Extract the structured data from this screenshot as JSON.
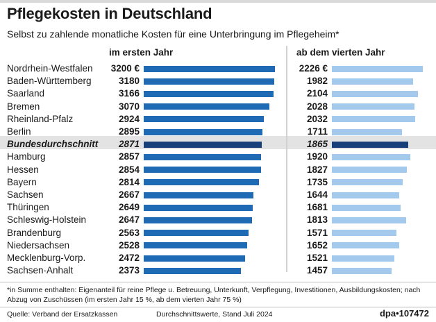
{
  "title": "Pflegekosten in Deutschland",
  "subtitle": "Selbst zu zahlende monatliche Kosten für eine Unterbringung im Pflegeheim*",
  "footnote": "*in Summe enthalten: Eigenanteil für reine Pflege u. Betreuung, Unterkunft, Verpflegung, Investitionen, Ausbildungskosten; nach Abzug von Zuschüssen (im ersten Jahr 15 %, ab dem vierten Jahr 75 %)",
  "source": "Quelle: Verband der Ersatzkassen",
  "date_note": "Durchschnittswerte, Stand Juli 2024",
  "credit": "dpa•107472",
  "colors": {
    "first_year": "#1f6ab4",
    "fourth_year": "#a3c9ec",
    "national_first": "#173f7a",
    "national_fourth": "#173f7a"
  },
  "chart_data": {
    "type": "bar",
    "orientation": "horizontal",
    "unit": "€",
    "highlighted_category": "Bundesdurchschnitt",
    "categories": [
      "Nordrhein-Westfalen",
      "Baden-Württemberg",
      "Saarland",
      "Bremen",
      "Rheinland-Pfalz",
      "Berlin",
      "Bundesdurchschnitt",
      "Hamburg",
      "Hessen",
      "Bayern",
      "Sachsen",
      "Thüringen",
      "Schleswig-Holstein",
      "Brandenburg",
      "Niedersachsen",
      "Mecklenburg-Vorp.",
      "Sachsen-Anhalt"
    ],
    "series": [
      {
        "name": "im ersten Jahr",
        "values": [
          3200,
          3180,
          3166,
          3070,
          2924,
          2895,
          2871,
          2857,
          2854,
          2814,
          2667,
          2649,
          2647,
          2563,
          2528,
          2472,
          2373
        ],
        "labels": [
          "3200 €",
          "3180",
          "3166",
          "3070",
          "2924",
          "2895",
          "2871",
          "2857",
          "2854",
          "2814",
          "2667",
          "2649",
          "2647",
          "2563",
          "2528",
          "2472",
          "2373"
        ]
      },
      {
        "name": "ab dem vierten Jahr",
        "values": [
          2226,
          1982,
          2104,
          2028,
          2032,
          1711,
          1865,
          1920,
          1827,
          1735,
          1644,
          1681,
          1813,
          1571,
          1652,
          1521,
          1457
        ],
        "labels": [
          "2226 €",
          "1982",
          "2104",
          "2028",
          "2032",
          "1711",
          "1865",
          "1920",
          "1827",
          "1735",
          "1644",
          "1681",
          "1813",
          "1571",
          "1652",
          "1521",
          "1457"
        ]
      }
    ]
  }
}
